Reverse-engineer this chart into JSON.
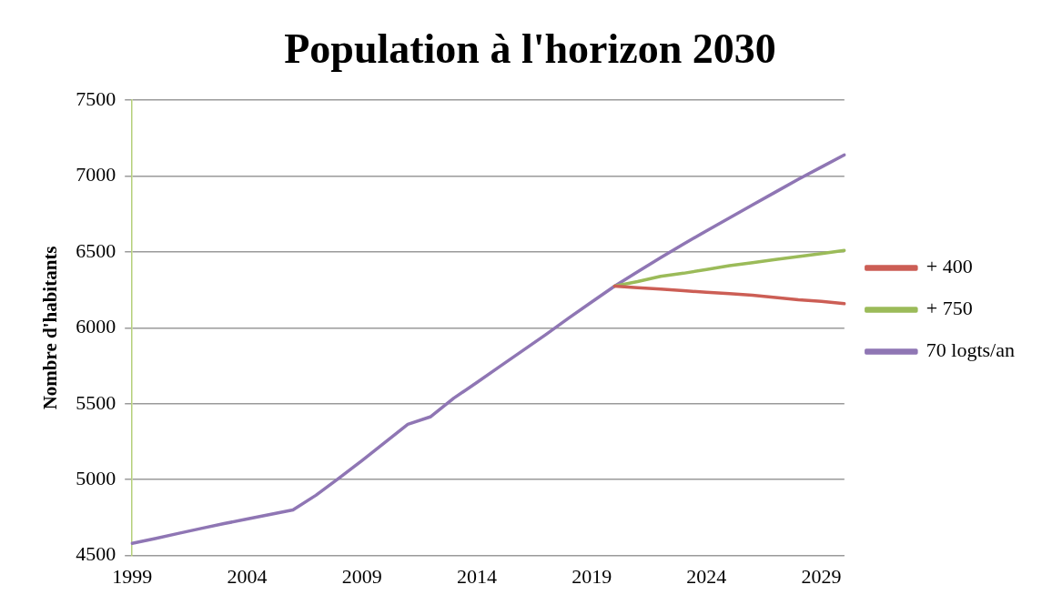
{
  "chart_data": {
    "type": "line",
    "title": "Population à l'horizon 2030",
    "ylabel": "Nombre d'habitants",
    "categories": [
      "1999",
      null,
      null,
      null,
      null,
      "2004",
      null,
      null,
      null,
      null,
      "2009",
      null,
      null,
      null,
      null,
      "2014",
      null,
      null,
      null,
      null,
      "2019",
      null,
      null,
      null,
      null,
      "2024",
      null,
      null,
      null,
      null,
      "2029",
      null
    ],
    "series": [
      {
        "name": "+ 400",
        "color": "#cc5e55",
        "values": [
          null,
          null,
          null,
          null,
          null,
          null,
          null,
          null,
          null,
          null,
          null,
          null,
          null,
          null,
          null,
          null,
          null,
          null,
          null,
          null,
          null,
          6275,
          6265,
          6255,
          6245,
          6235,
          6225,
          6215,
          6200,
          6185,
          6175,
          6160
        ]
      },
      {
        "name": "+ 750",
        "color": "#9bbb59",
        "values": [
          null,
          null,
          null,
          null,
          null,
          null,
          null,
          null,
          null,
          null,
          null,
          null,
          null,
          null,
          null,
          null,
          null,
          null,
          null,
          null,
          null,
          6275,
          6305,
          6340,
          6360,
          6385,
          6410,
          6430,
          6450,
          6470,
          6490,
          6510
        ]
      },
      {
        "name": "70 logts/an",
        "color": "#8f76b4",
        "values": [
          4580,
          4612,
          4645,
          4678,
          4710,
          4740,
          4770,
          4800,
          4897,
          5010,
          5125,
          5245,
          5365,
          5415,
          5537,
          5640,
          5745,
          5850,
          5955,
          6065,
          6170,
          6275,
          6370,
          6462,
          6552,
          6640,
          6725,
          6810,
          6895,
          6980,
          7060,
          7140
        ]
      }
    ],
    "ylim": [
      4500,
      7500
    ],
    "yticks": [
      4500,
      5000,
      5500,
      6000,
      6500,
      7000,
      7500
    ],
    "grid": "y",
    "legend": "right",
    "marker": "none",
    "line_style": "solid"
  }
}
